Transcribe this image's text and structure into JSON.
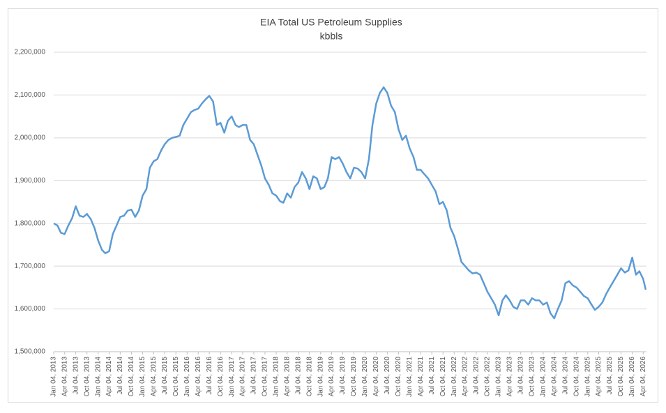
{
  "chart_data": {
    "type": "line",
    "title": "EIA Total US Petroleum Supplies",
    "subtitle": "kbbls",
    "x": [
      "Jan 04, 2013",
      "Feb 04, 2013",
      "Mar 04, 2013",
      "Apr 04, 2013",
      "May 04, 2013",
      "Jun 04, 2013",
      "Jul 04, 2013",
      "Aug 04, 2013",
      "Sep 04, 2013",
      "Oct 04, 2013",
      "Nov 04, 2013",
      "Dec 04, 2013",
      "Jan 04, 2014",
      "Feb 04, 2014",
      "Mar 04, 2014",
      "Apr 04, 2014",
      "May 04, 2014",
      "Jun 04, 2014",
      "Jul 04, 2014",
      "Aug 04, 2014",
      "Sep 04, 2014",
      "Oct 04, 2014",
      "Nov 04, 2014",
      "Dec 04, 2014",
      "Jan 04, 2015",
      "Feb 04, 2015",
      "Mar 04, 2015",
      "Apr 04, 2015",
      "May 04, 2015",
      "Jun 04, 2015",
      "Jul 04, 2015",
      "Aug 04, 2015",
      "Sep 04, 2015",
      "Oct 04, 2015",
      "Nov 04, 2015",
      "Dec 04, 2015",
      "Jan 04, 2016",
      "Feb 04, 2016",
      "Mar 04, 2016",
      "Apr 04, 2016",
      "May 04, 2016",
      "Jun 04, 2016",
      "Jul 04, 2016",
      "Aug 04, 2016",
      "Sep 04, 2016",
      "Oct 04, 2016",
      "Nov 04, 2016",
      "Dec 04, 2016",
      "Jan 04, 2017",
      "Feb 04, 2017",
      "Mar 04, 2017",
      "Apr 04, 2017",
      "May 04, 2017",
      "Jun 04, 2017",
      "Jul 04, 2017",
      "Aug 04, 2017",
      "Sep 04, 2017",
      "Oct 04, 2017",
      "Nov 04, 2017",
      "Dec 04, 2017",
      "Jan 04, 2018",
      "Feb 04, 2018",
      "Mar 04, 2018",
      "Apr 04, 2018",
      "May 04, 2018",
      "Jun 04, 2018",
      "Jul 04, 2018",
      "Aug 04, 2018",
      "Sep 04, 2018",
      "Oct 04, 2018",
      "Nov 04, 2018",
      "Dec 04, 2018",
      "Jan 04, 2019",
      "Feb 04, 2019",
      "Mar 04, 2019",
      "Apr 04, 2019",
      "May 04, 2019",
      "Jun 04, 2019",
      "Jul 04, 2019",
      "Aug 04, 2019",
      "Sep 04, 2019",
      "Oct 04, 2019",
      "Nov 04, 2019",
      "Dec 04, 2019",
      "Jan 04, 2020",
      "Feb 04, 2020",
      "Mar 04, 2020",
      "Apr 04, 2020",
      "May 04, 2020",
      "Jun 04, 2020",
      "Jul 04, 2020",
      "Aug 04, 2020",
      "Sep 04, 2020",
      "Oct 04, 2020",
      "Nov 04, 2020",
      "Dec 04, 2020",
      "Jan 04, 2021",
      "Feb 04, 2021",
      "Mar 04, 2021",
      "Apr 04, 2021",
      "May 04, 2021",
      "Jun 04, 2021",
      "Jul 04, 2021",
      "Aug 04, 2021",
      "Sep 04, 2021",
      "Oct 04, 2021",
      "Nov 04, 2021",
      "Dec 04, 2021",
      "Jan 04, 2022",
      "Feb 04, 2022",
      "Mar 04, 2022",
      "Apr 04, 2022",
      "May 04, 2022",
      "Jun 04, 2022",
      "Jul 04, 2022",
      "Aug 04, 2022",
      "Sep 04, 2022",
      "Oct 04, 2022",
      "Nov 04, 2022",
      "Dec 04, 2022",
      "Jan 04, 2023",
      "Feb 04, 2023",
      "Mar 04, 2023",
      "Apr 04, 2023",
      "May 04, 2023",
      "Jun 04, 2023",
      "Jul 04, 2023",
      "Aug 04, 2023",
      "Sep 04, 2023",
      "Oct 04, 2023",
      "Nov 04, 2023",
      "Dec 04, 2023",
      "Jan 04, 2024",
      "Feb 04, 2024",
      "Mar 04, 2024",
      "Apr 04, 2024",
      "May 04, 2024",
      "Jun 04, 2024",
      "Jul 04, 2024",
      "Aug 04, 2024",
      "Sep 04, 2024",
      "Oct 04, 2024",
      "Nov 04, 2024",
      "Dec 04, 2024",
      "Jan 04, 2025",
      "Feb 04, 2025",
      "Mar 04, 2025",
      "Apr 04, 2025",
      "May 04, 2025",
      "Jun 04, 2025",
      "Jul 04, 2025",
      "Aug 04, 2025",
      "Sep 04, 2025",
      "Oct 04, 2025",
      "Nov 04, 2025",
      "Dec 04, 2025",
      "Jan 04, 2026",
      "Feb 04, 2026",
      "Mar 04, 2026",
      "Apr 04, 2026",
      "Apr 25, 2026"
    ],
    "series": [
      {
        "name": "Total US Petroleum Supplies",
        "color": "#5b9bd5",
        "values": [
          1800000,
          1795000,
          1778000,
          1775000,
          1795000,
          1812000,
          1840000,
          1818000,
          1815000,
          1822000,
          1810000,
          1790000,
          1760000,
          1738000,
          1730000,
          1735000,
          1775000,
          1795000,
          1815000,
          1818000,
          1830000,
          1832000,
          1815000,
          1830000,
          1865000,
          1880000,
          1930000,
          1945000,
          1950000,
          1970000,
          1985000,
          1995000,
          2000000,
          2002000,
          2005000,
          2030000,
          2045000,
          2060000,
          2065000,
          2068000,
          2080000,
          2090000,
          2098000,
          2085000,
          2030000,
          2035000,
          2012000,
          2040000,
          2050000,
          2030000,
          2025000,
          2030000,
          2030000,
          1995000,
          1985000,
          1960000,
          1935000,
          1905000,
          1890000,
          1870000,
          1865000,
          1852000,
          1848000,
          1870000,
          1860000,
          1885000,
          1895000,
          1920000,
          1905000,
          1880000,
          1910000,
          1905000,
          1880000,
          1885000,
          1905000,
          1955000,
          1950000,
          1955000,
          1940000,
          1920000,
          1905000,
          1930000,
          1928000,
          1920000,
          1905000,
          1950000,
          2030000,
          2080000,
          2105000,
          2118000,
          2105000,
          2075000,
          2060000,
          2020000,
          1995000,
          2005000,
          1975000,
          1955000,
          1925000,
          1925000,
          1915000,
          1905000,
          1890000,
          1875000,
          1845000,
          1850000,
          1830000,
          1790000,
          1770000,
          1740000,
          1710000,
          1700000,
          1690000,
          1683000,
          1685000,
          1680000,
          1660000,
          1640000,
          1625000,
          1610000,
          1585000,
          1620000,
          1632000,
          1620000,
          1605000,
          1600000,
          1620000,
          1620000,
          1610000,
          1625000,
          1620000,
          1620000,
          1610000,
          1615000,
          1590000,
          1578000,
          1600000,
          1620000,
          1660000,
          1665000,
          1655000,
          1650000,
          1640000,
          1630000,
          1625000,
          1610000,
          1598000,
          1605000,
          1615000,
          1635000,
          1650000,
          1665000,
          1680000,
          1695000,
          1685000,
          1690000,
          1720000,
          1680000,
          1688000,
          1670000,
          1645000
        ]
      }
    ],
    "xlim": [
      "Jan 04, 2013",
      "May 01, 2026"
    ],
    "xticks": [
      "Jan 04, 2013",
      "Apr 04, 2013",
      "Jul 04, 2013",
      "Oct 04, 2013",
      "Jan 04, 2014",
      "Apr 04, 2014",
      "Jul 04, 2014",
      "Oct 04, 2014",
      "Jan 04, 2015",
      "Apr 04, 2015",
      "Jul 04, 2015",
      "Oct 04, 2015",
      "Jan 04, 2016",
      "Apr 04, 2016",
      "Jul 04, 2016",
      "Oct 04, 2016",
      "Jan 04, 2017",
      "Apr 04, 2017",
      "Jul 04, 2017",
      "Oct 04, 2017",
      "Jan 04, 2018",
      "Apr 04, 2018",
      "Jul 04, 2018",
      "Oct 04, 2018",
      "Jan 04, 2019",
      "Apr 04, 2019",
      "Jul 04, 2019",
      "Oct 04, 2019",
      "Jan 04, 2020",
      "Apr 04, 2020",
      "Jul 04, 2020",
      "Oct 04, 2020",
      "Jan 04, 2021",
      "Apr 04, 2021",
      "Jul 04, 2021",
      "Oct 04, 2021",
      "Jan 04, 2022",
      "Apr 04, 2022",
      "Jul 04, 2022",
      "Oct 04, 2022",
      "Jan 04, 2023",
      "Apr 04, 2023",
      "Jul 04, 2023",
      "Oct 04, 2023",
      "Jan 04, 2024",
      "Apr 04, 2024",
      "Jul 04, 2024",
      "Oct 04, 2024",
      "Jan 04, 2025",
      "Apr 04, 2025",
      "Jul 04, 2025",
      "Oct 04, 2025",
      "Jan 04, 2026",
      "Apr 04, 2026"
    ],
    "ylim": [
      1500000,
      2200000
    ],
    "yticks": [
      {
        "value": 1500000,
        "label": "1,500,000"
      },
      {
        "value": 1600000,
        "label": "1,600,000"
      },
      {
        "value": 1700000,
        "label": "1,700,000"
      },
      {
        "value": 1800000,
        "label": "1,800,000"
      },
      {
        "value": 1900000,
        "label": "1,900,000"
      },
      {
        "value": 2000000,
        "label": "2,000,000"
      },
      {
        "value": 2100000,
        "label": "2,100,000"
      },
      {
        "value": 2200000,
        "label": "2,200,000"
      }
    ],
    "grid": true
  }
}
